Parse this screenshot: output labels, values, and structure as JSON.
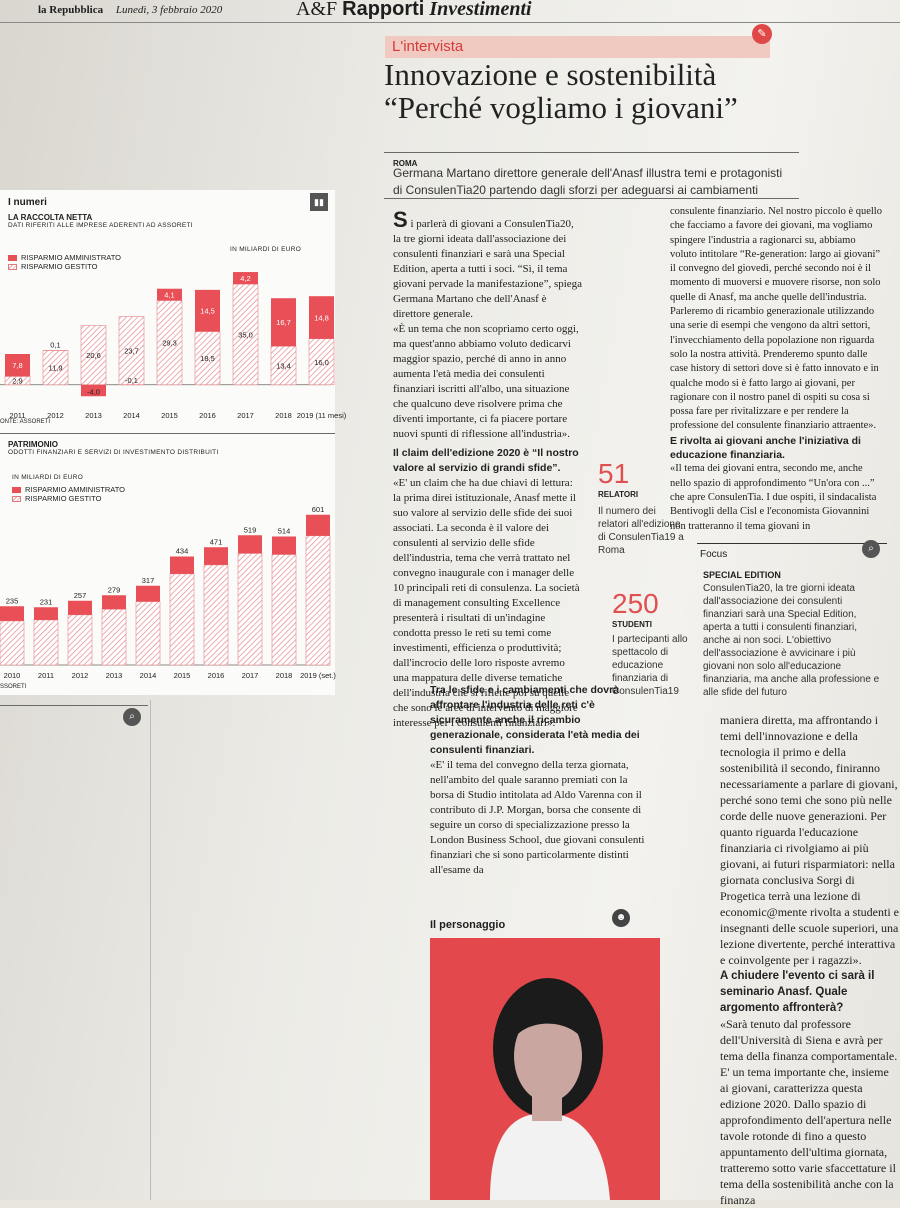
{
  "masthead": {
    "newspaper": "la Repubblica",
    "date": "Lunedì, 3 febbraio 2020",
    "supplement_logo": "A&F",
    "supplement_title": "Rapporti",
    "supplement_section": "Investimenti"
  },
  "article": {
    "section": "L'intervista",
    "headline_line1": "Innovazione e sostenibilità",
    "headline_line2": "“Perché vogliamo i giovani”",
    "dateline": "ROMA",
    "standfirst_line1": "Germana Martano direttore generale dell'Anasf illustra temi e protagonisti",
    "standfirst_line2": "di ConsulenTia20 partendo dagli sforzi per adeguarsi ai cambiamenti",
    "col1": [
      "i parlerà di giovani a ConsulenTia20, la tre giorni ideata dall'associazione dei consulenti finanziari e sarà una Special Edition, aperta a tutti i soci. “Sì, il tema giovani pervade la manifestazione”, spiega Germana Martano che dell'Anasf è direttore generale.",
      "«È un tema che non scopriamo certo oggi, ma quest'anno abbiamo voluto dedicarvi maggior spazio, perché di anno in anno aumenta l'età media dei consulenti finanziari iscritti all'albo, una situazione che qualcuno deve risolvere prima che diventi importante, ci fa piacere portare nuovi spunti di riflessione all'industria»."
    ],
    "col1_sub1": "Il claim dell'edizione 2020 è “Il nostro valore al servizio di grandi sfide”.",
    "col1_p3": "«E' un claim che ha due chiavi di lettura: la prima direi istituzionale, Anasf mette il suo valore al servizio delle sfide dei suoi associati. La seconda è il valore dei consulenti al servizio delle sfide dell'industria, tema che verrà trattato nel convegno inaugurale con i manager delle 10 principali reti di consulenza. La società di management consulting Excellence presenterà i risultati di un'indagine condotta presso le reti su temi come investimenti, efficienza o produttività; dall'incrocio delle loro risposte avremo una mappatura delle diverse tematiche dell'industria che si riflette poi su quelle che sono le aree di intervento di maggiore interesse per i consulenti finanziari».",
    "col1_sub2": "Tra le sfide e i cambiamenti che dovrà affrontare l'industria delle reti c'è sicuramente anche il ricambio generazionale, considerata l'età media dei consulenti finanziari.",
    "col1_p4": "«E' il tema del convegno della terza giornata, nell'ambito del quale saranno premiati con la borsa di Studio intitolata ad Aldo Varenna con il contributo di J.P. Morgan, borsa che consente di seguire un corso di specializzazione presso la London Business School, due giovani consulenti finanziari che si sono particolarmente distinti all'esame da",
    "col2_p1": "consulente finanziario. Nel nostro piccolo è quello che facciamo a favore dei giovani, ma vogliamo spingere l'industria a ragionarci su, abbiamo voluto intitolare “Re-generation: largo ai giovani” il convegno del giovedì, perché secondo noi è il momento di muoversi e muovere risorse, non solo quelle di Anasf, ma anche quelle dell'industria. Parleremo di ricambio generazionale utilizzando una serie di esempi che vengono da altri settori, l'invecchiamento della popolazione non riguarda solo la nostra attività. Prenderemo spunto dalle case history di settori dove si è fatto innovato e in qualche modo si è fatto largo ai giovani, per ragionare con il nostro panel di ospiti su cosa si possa fare per rivitalizzare e per rendere la professione del consulente finanziario attraente».",
    "col2_sub": "E rivolta ai giovani anche l'iniziativa di educazione finanziaria.",
    "col2_p2": "«Il tema dei giovani entra, secondo me, anche nello spazio di approfondimento “Un'ora con ...” che apre ConsulenTia. I due ospiti, il sindacalista Bentivogli della Cisl e l'economista Giovannini non tratteranno il tema giovani in",
    "col2_bottom": "maniera diretta, ma affrontando i temi dell'innovazione e della tecnologia il primo e della sostenibilità il secondo, finiranno necessariamente a parlare di giovani, perché sono temi che sono più nelle corde delle nuove generazioni. Per quanto riguarda l'educazione finanziaria ci rivolgiamo ai più giovani, ai futuri risparmiatori: nella giornata conclusiva Sorgi di Progetica terrà una lezione di economic@mente rivolta a studenti e insegnanti delle scuole superiori, una lezione divertente, perché interattiva e coinvolgente per i ragazzi».",
    "col2_sub3": "A chiudere l'evento ci sarà il seminario Anasf. Quale argomento affronterà?",
    "col2_p3": "«Sarà tenuto dal professore dell'Università di Siena e avrà per tema della finanza comportamentale. E' un tema importante che, insieme ai giovani, caratterizza questa edizione 2020. Dallo spazio di approfondimento dell'apertura nelle tavole rotonde di fino a questo appuntamento dell'ultima giornata, tratteremo sotto varie sfaccettature il tema della sostenibilità anche con la finanza"
  },
  "stats": [
    {
      "value": "51",
      "label": "RELATORI",
      "text": "Il numero dei relatori all'edizione di ConsulenTia19 a Roma"
    },
    {
      "value": "250",
      "label": "STUDENTI",
      "text": "I partecipanti allo spettacolo di educazione finanziaria di ConsulenTia19"
    }
  ],
  "focus": {
    "label": "Focus",
    "title": "SPECIAL EDITION",
    "text": "ConsulenTia20, la tre giorni ideata dall'associazione dei consulenti finanziari sarà una Special Edition, aperta a tutti i consulenti finanziari, anche ai non soci. L'obiettivo dell'associazione è avvicinare i più giovani non solo all'educazione finanziaria, ma anche alla professione e alle sfide del futuro"
  },
  "personaggio": {
    "label": "Il personaggio"
  },
  "numeri": {
    "box_label": "I numeri",
    "chart1": {
      "title": "LA RACCOLTA NETTA",
      "subtitle": "DATI RIFERITI ALLE IMPRESE ADERENTI AD ASSORETI",
      "unit": "IN MILIARDI DI EURO",
      "legend": [
        "RISPARMIO AMMINISTRATO",
        "RISPARMIO GESTITO"
      ],
      "source": "ONTE: ASSORETI"
    },
    "chart2": {
      "title": "PATRIMONIO",
      "subtitle": "ODOTTI FINANZIARI E SERVIZI DI INVESTIMENTO DISTRIBUITI",
      "unit": "IN MILIARDI DI EURO",
      "legend": [
        "RISPARMIO AMMINISTRATO",
        "RISPARMIO GESTITO"
      ],
      "source": "SSORETI"
    }
  },
  "chart_data": [
    {
      "type": "bar",
      "title": "LA RACCOLTA NETTA",
      "categories": [
        "2011",
        "2012",
        "2013",
        "2014",
        "2015",
        "2016",
        "2017",
        "2018",
        "2019 (11 mesi)"
      ],
      "series": [
        {
          "name": "RISPARMIO AMMINISTRATO",
          "values": [
            7.8,
            0.1,
            -4.0,
            -0.1,
            4.1,
            14.5,
            4.2,
            16.7,
            14.8
          ]
        },
        {
          "name": "RISPARMIO GESTITO",
          "values": [
            2.9,
            11.9,
            20.6,
            23.7,
            29.3,
            18.5,
            35.0,
            13.4,
            16.0
          ]
        }
      ],
      "labels_amm": [
        "7,8",
        "0,1",
        "-4,0",
        "-0,1",
        "4,1",
        "14,5",
        "4,2",
        "16,7",
        "14,8"
      ],
      "labels_gest": [
        "2,9",
        "11,9",
        "20,6",
        "23,7",
        "29,3",
        "18,5",
        "35,0",
        "13,4",
        "16,0"
      ],
      "ylim": [
        -6,
        42
      ]
    },
    {
      "type": "bar",
      "title": "PATRIMONIO",
      "categories": [
        "2010",
        "2011",
        "2012",
        "2013",
        "2014",
        "2015",
        "2016",
        "2017",
        "2018",
        "2019 (set.)"
      ],
      "totals": [
        235,
        231,
        257,
        279,
        317,
        434,
        471,
        519,
        514,
        601
      ],
      "gestito_share": [
        0.75,
        0.78,
        0.78,
        0.8,
        0.8,
        0.84,
        0.85,
        0.86,
        0.86,
        0.86
      ],
      "ylim": [
        0,
        640
      ]
    }
  ]
}
